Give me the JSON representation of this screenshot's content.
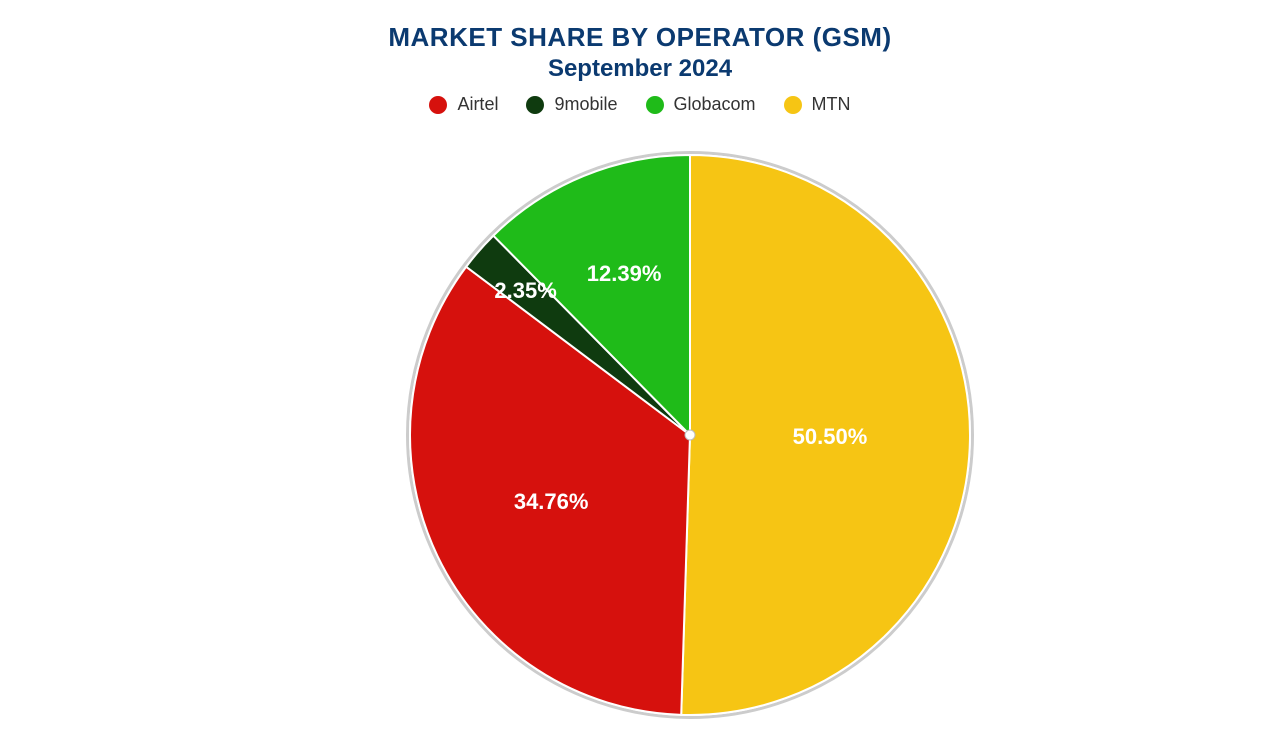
{
  "chart": {
    "type": "pie",
    "title_main": "MARKET SHARE BY OPERATOR (GSM)",
    "title_sub": "September 2024",
    "title_color": "#0b3a70",
    "title_fontsize_main": 26,
    "title_fontsize_sub": 24,
    "background_color": "#ffffff",
    "pie_outer_ring_color": "#cccccc",
    "pie_outer_ring_width": 3,
    "slice_border_color": "#ffffff",
    "slice_border_width": 2,
    "center_dot_color": "#ffffff",
    "center_dot_border": "#bbbbbb",
    "label_color": "#ffffff",
    "label_fontsize": 22,
    "label_fontweight": "700",
    "legend_fontsize": 18,
    "legend_text_color": "#333333",
    "start_angle_deg": -90,
    "direction": "clockwise",
    "series": [
      {
        "name": "MTN",
        "value": 50.5,
        "label": "50.50%",
        "color": "#f6c514",
        "label_radius_frac": 0.5
      },
      {
        "name": "Airtel",
        "value": 34.76,
        "label": "34.76%",
        "color": "#d6110d",
        "label_radius_frac": 0.55
      },
      {
        "name": "9mobile",
        "value": 2.35,
        "label": "2.35%",
        "color": "#0f3b0f",
        "label_radius_frac": 0.78
      },
      {
        "name": "Globacom",
        "value": 12.39,
        "label": "12.39%",
        "color": "#1fbb19",
        "label_radius_frac": 0.62
      }
    ],
    "legend_order": [
      "Airtel",
      "9mobile",
      "Globacom",
      "MTN"
    ]
  }
}
